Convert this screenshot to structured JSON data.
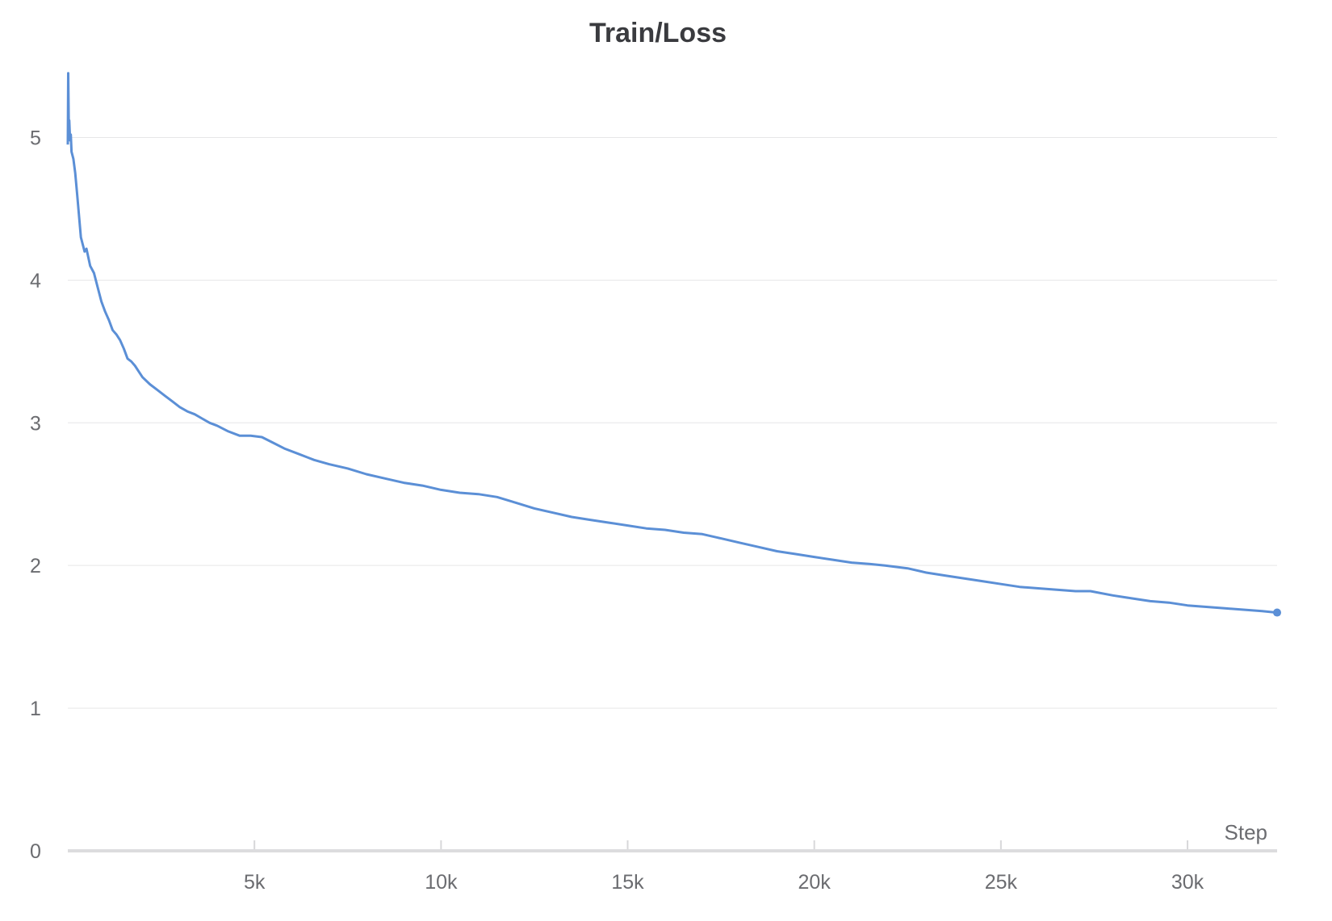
{
  "chart_data": {
    "type": "line",
    "title": "Train/Loss",
    "xlabel": "Step",
    "ylabel": "",
    "xlim": [
      0,
      32400
    ],
    "ylim": [
      0,
      5.5
    ],
    "grid": true,
    "line_color": "#5b8fd6",
    "x_ticks": [
      {
        "value": 5000,
        "label": "5k"
      },
      {
        "value": 10000,
        "label": "10k"
      },
      {
        "value": 15000,
        "label": "15k"
      },
      {
        "value": 20000,
        "label": "20k"
      },
      {
        "value": 25000,
        "label": "25k"
      },
      {
        "value": 30000,
        "label": "30k"
      }
    ],
    "y_ticks": [
      {
        "value": 0,
        "label": "0"
      },
      {
        "value": 1,
        "label": "1"
      },
      {
        "value": 2,
        "label": "2"
      },
      {
        "value": 3,
        "label": "3"
      },
      {
        "value": 4,
        "label": "4"
      },
      {
        "value": 5,
        "label": "5"
      }
    ],
    "series": [
      {
        "x": [
          0,
          10,
          25,
          40,
          60,
          80,
          100,
          150,
          200,
          250,
          300,
          350,
          400,
          450,
          500,
          600,
          700,
          800,
          900,
          1000,
          1100,
          1200,
          1300,
          1400,
          1500,
          1600,
          1700,
          1800,
          1900,
          2000,
          2200,
          2400,
          2600,
          2800,
          3000,
          3200,
          3400,
          3600,
          3800,
          4000,
          4300,
          4600,
          4900,
          5200,
          5500,
          5800,
          6200,
          6600,
          7000,
          7500,
          8000,
          8500,
          9000,
          9500,
          10000,
          10500,
          11000,
          11500,
          12000,
          12500,
          13000,
          13500,
          14000,
          14500,
          15000,
          15500,
          16000,
          16500,
          17000,
          17500,
          18000,
          18500,
          19000,
          19500,
          20000,
          20500,
          21000,
          21500,
          21900,
          22500,
          23000,
          23500,
          24000,
          24500,
          25000,
          25500,
          26000,
          26500,
          27000,
          27400,
          28000,
          28500,
          29000,
          29500,
          30000,
          30500,
          31000,
          31500,
          32000,
          32400
        ],
        "y": [
          4.95,
          5.45,
          5.1,
          5.12,
          4.98,
          5.02,
          4.9,
          4.85,
          4.75,
          4.6,
          4.45,
          4.3,
          4.25,
          4.2,
          4.22,
          4.1,
          4.05,
          3.95,
          3.85,
          3.78,
          3.72,
          3.65,
          3.62,
          3.58,
          3.52,
          3.45,
          3.43,
          3.4,
          3.36,
          3.32,
          3.27,
          3.23,
          3.19,
          3.15,
          3.11,
          3.08,
          3.06,
          3.03,
          3.0,
          2.98,
          2.94,
          2.91,
          2.91,
          2.9,
          2.86,
          2.82,
          2.78,
          2.74,
          2.71,
          2.68,
          2.64,
          2.61,
          2.58,
          2.56,
          2.53,
          2.51,
          2.5,
          2.48,
          2.44,
          2.4,
          2.37,
          2.34,
          2.32,
          2.3,
          2.28,
          2.26,
          2.25,
          2.23,
          2.22,
          2.19,
          2.16,
          2.13,
          2.1,
          2.08,
          2.06,
          2.04,
          2.02,
          2.01,
          2.0,
          1.98,
          1.95,
          1.93,
          1.91,
          1.89,
          1.87,
          1.85,
          1.84,
          1.83,
          1.82,
          1.82,
          1.79,
          1.77,
          1.75,
          1.74,
          1.72,
          1.71,
          1.7,
          1.69,
          1.68,
          1.67
        ]
      }
    ]
  }
}
